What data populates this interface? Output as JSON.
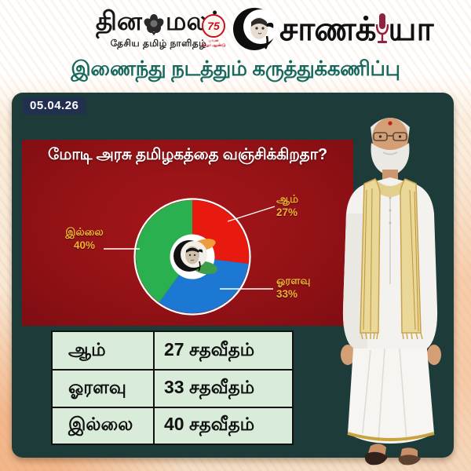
{
  "header": {
    "dinamalar": {
      "name_part1": "தின",
      "name_part2": "மலர்",
      "tagline": "தேசிய தமிழ் நாளிதழ்",
      "badge_number": "75",
      "badge_caption": "பவள\nவிழா ஆண்டு"
    },
    "chanakya": {
      "name_part1": "சாணக்",
      "name_part2": "யா"
    },
    "subtitle": "இணைந்து நடத்தும் கருத்துக்கணிப்பு"
  },
  "panel": {
    "date": "05.04.26",
    "question": "மோடி அரசு தமிழகத்தை வஞ்சிக்கிறதா?"
  },
  "chart_data": {
    "type": "pie",
    "title": "மோடி அரசு தமிழகத்தை வஞ்சிக்கிறதா?",
    "start_angle_deg": 0,
    "direction": "clockwise",
    "label_color": "#f2af35",
    "segments": [
      {
        "label": "ஆம்",
        "value": 27,
        "percent_label": "27%",
        "color": "#e8190e"
      },
      {
        "label": "ஓரளவு",
        "value": 33,
        "percent_label": "33%",
        "color": "#1d78d3"
      },
      {
        "label": "இல்லை",
        "value": 40,
        "percent_label": "40%",
        "color": "#2bb04f"
      }
    ]
  },
  "table": {
    "rows": [
      {
        "label": "ஆம்",
        "value": "27 சதவீதம்"
      },
      {
        "label": "ஓரளவு",
        "value": "33 சதவீதம்"
      },
      {
        "label": "இல்லை",
        "value": "40 சதவீதம்"
      }
    ]
  },
  "colors": {
    "panel_teal": "#1d3c39",
    "panel_red": "#931216",
    "subtitle_teal": "#17695e",
    "label_yellow": "#f2af35",
    "table_bg": "#d8ecd9",
    "logo_red": "#c41220",
    "mic_maroon": "#8e2440"
  }
}
